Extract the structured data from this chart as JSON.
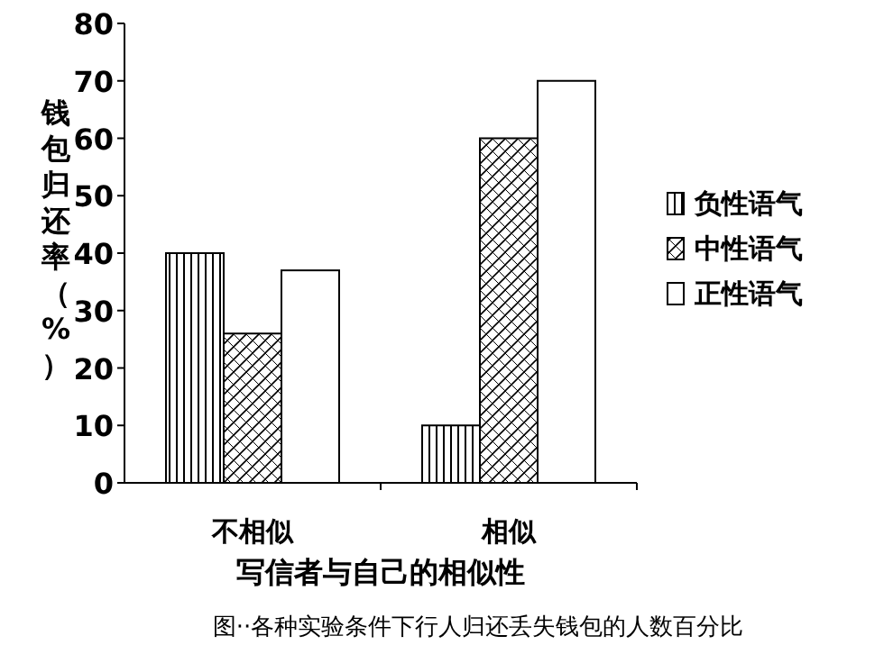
{
  "chart_data": {
    "type": "bar",
    "xlabel": "写信者与自己的相似性",
    "ylabel": "钱包归还率（%）",
    "categories": [
      "不相似",
      "相似"
    ],
    "series": [
      {
        "name": "负性语气",
        "color": "#000000",
        "values": [
          40,
          10
        ]
      },
      {
        "name": "中性语气",
        "color": "#000000",
        "values": [
          26,
          60
        ]
      },
      {
        "name": "正性语气",
        "color": "#ffffff",
        "values": [
          37,
          70
        ]
      }
    ],
    "ylim": [
      0,
      80
    ],
    "yticks": [
      0,
      10,
      20,
      30,
      40,
      50,
      60,
      70,
      80
    ],
    "legend": "right",
    "grid": false,
    "annotations": [
      "图··各种实验条件下行人归还丢失钱包的人数百分比"
    ]
  }
}
